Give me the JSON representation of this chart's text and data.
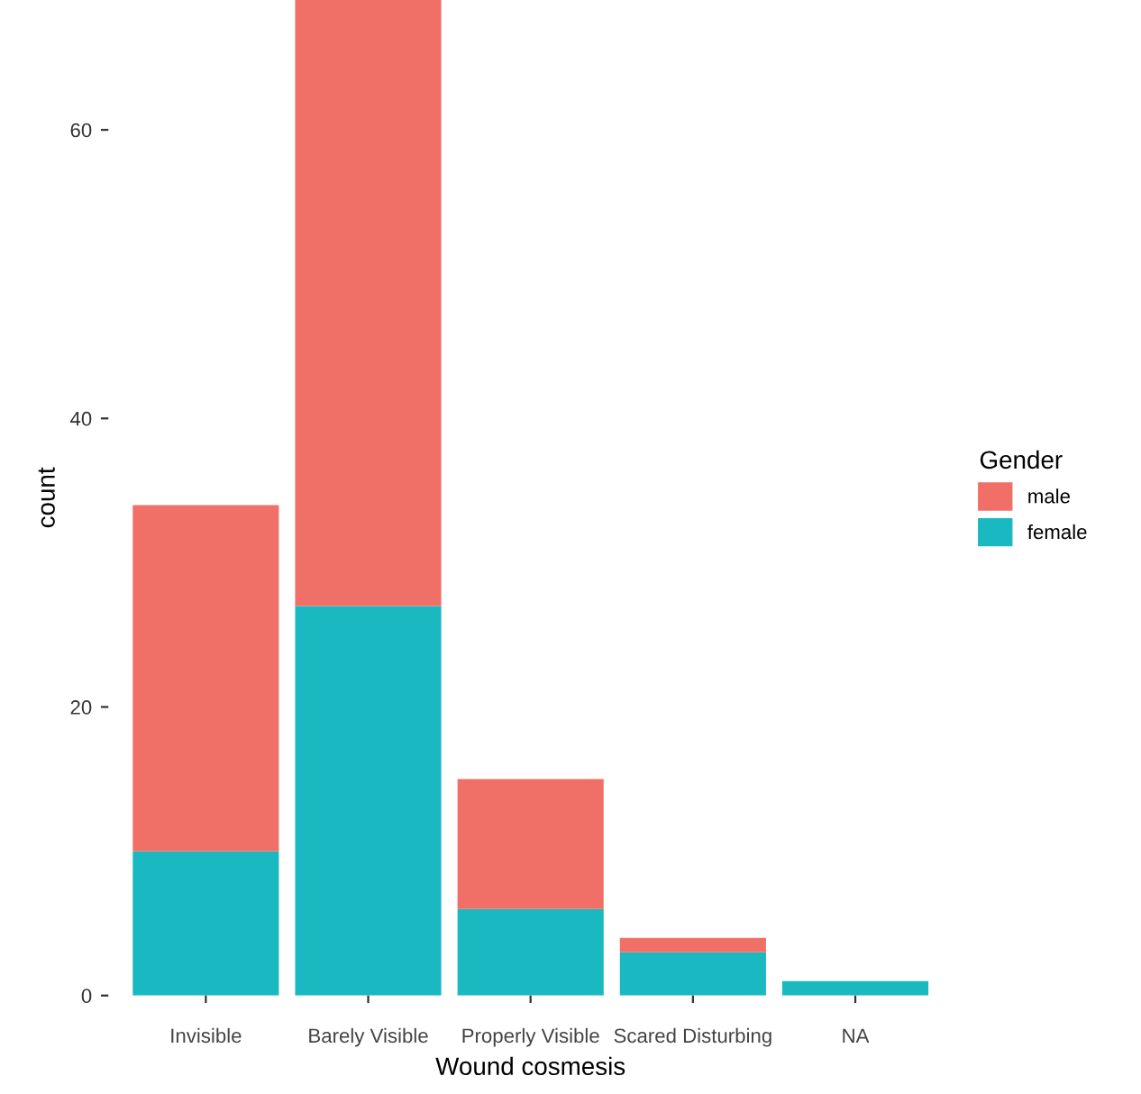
{
  "chart_data": {
    "type": "bar",
    "stacked": true,
    "xlabel": "Wound cosmesis",
    "ylabel": "count",
    "legend_title": "Gender",
    "legend": "right",
    "categories": [
      "Invisible",
      "Barely Visible",
      "Properly Visible",
      "Scared Disturbing",
      "NA"
    ],
    "series": [
      {
        "name": "female",
        "color": "#1ab9c1",
        "values": [
          10,
          27,
          6,
          3,
          1
        ]
      },
      {
        "name": "male",
        "color": "#f07068",
        "values": [
          24,
          42,
          9,
          1,
          0
        ]
      }
    ],
    "ylim": [
      0,
      69
    ],
    "yticks": [
      0,
      20,
      40,
      60
    ],
    "grid": false
  }
}
